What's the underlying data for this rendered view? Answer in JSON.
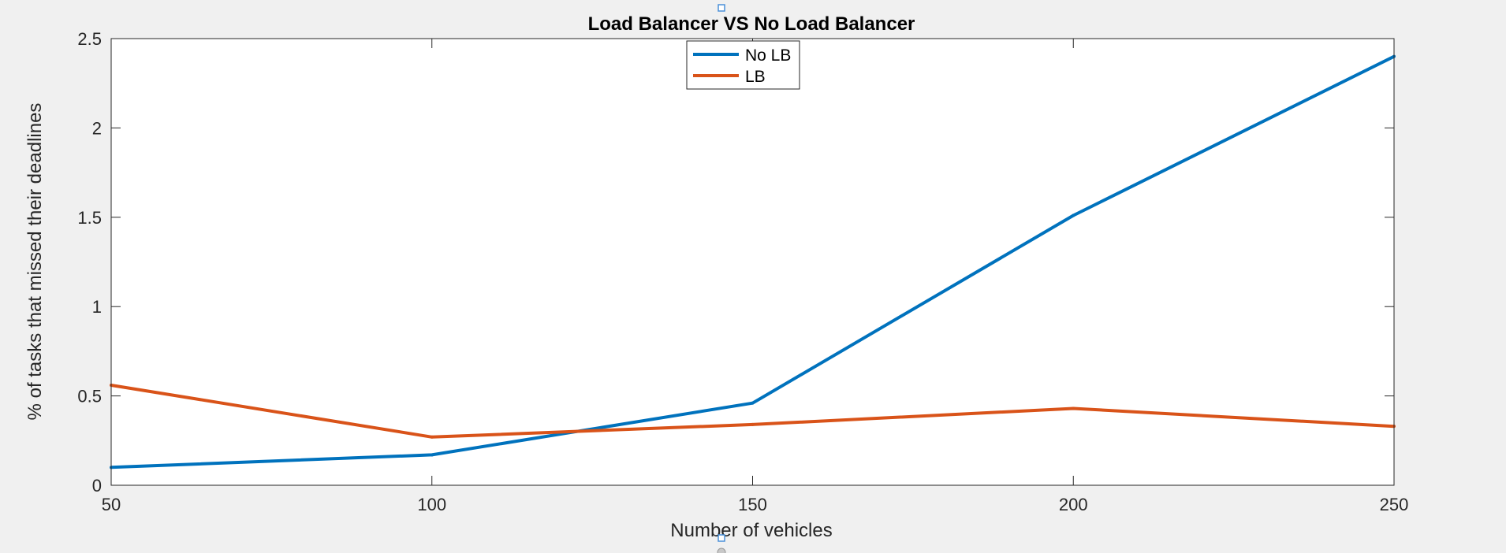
{
  "chart_data": {
    "type": "line",
    "title": "Load Balancer VS No Load Balancer",
    "xlabel": "Number of vehicles",
    "ylabel": "% of tasks that missed their deadlines",
    "xlim": [
      50,
      250
    ],
    "ylim": [
      0,
      2.5
    ],
    "xticks": [
      50,
      100,
      150,
      200,
      250
    ],
    "yticks": [
      0,
      0.5,
      1,
      1.5,
      2,
      2.5
    ],
    "xtick_labels": [
      "50",
      "100",
      "150",
      "200",
      "250"
    ],
    "ytick_labels": [
      "0",
      "0.5",
      "1",
      "1.5",
      "2",
      "2.5"
    ],
    "grid": false,
    "legend_position": "top-center",
    "series": [
      {
        "name": "No LB",
        "color": "#0072BD",
        "x": [
          50,
          100,
          150,
          200,
          250
        ],
        "y": [
          0.1,
          0.17,
          0.46,
          1.51,
          2.4
        ]
      },
      {
        "name": "LB",
        "color": "#D95319",
        "x": [
          50,
          100,
          150,
          200,
          250
        ],
        "y": [
          0.56,
          0.27,
          0.34,
          0.43,
          0.33
        ]
      }
    ]
  }
}
